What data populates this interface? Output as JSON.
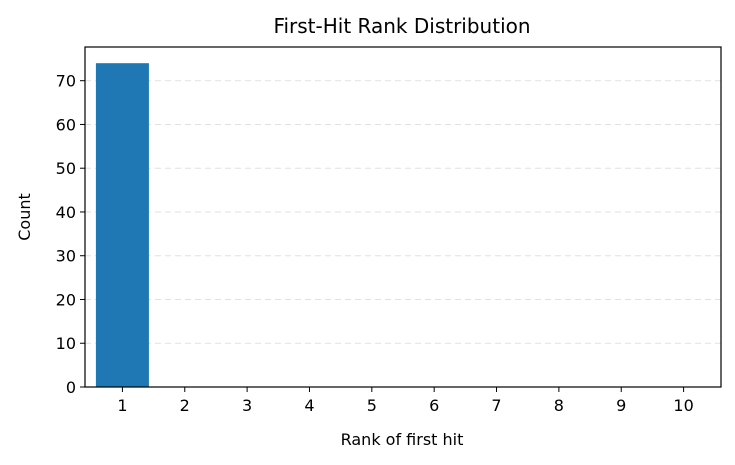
{
  "chart_data": {
    "type": "bar",
    "title": "First-Hit Rank Distribution",
    "xlabel": "Rank of first hit",
    "ylabel": "Count",
    "categories": [
      "1",
      "2",
      "3",
      "4",
      "5",
      "6",
      "7",
      "8",
      "9",
      "10"
    ],
    "values": [
      74,
      0,
      0,
      0,
      0,
      0,
      0,
      0,
      0,
      0
    ],
    "ylim": [
      0,
      77.7
    ],
    "yticks": [
      0,
      10,
      20,
      30,
      40,
      50,
      60,
      70
    ],
    "grid": "y",
    "bar_color": "#1f77b4"
  }
}
